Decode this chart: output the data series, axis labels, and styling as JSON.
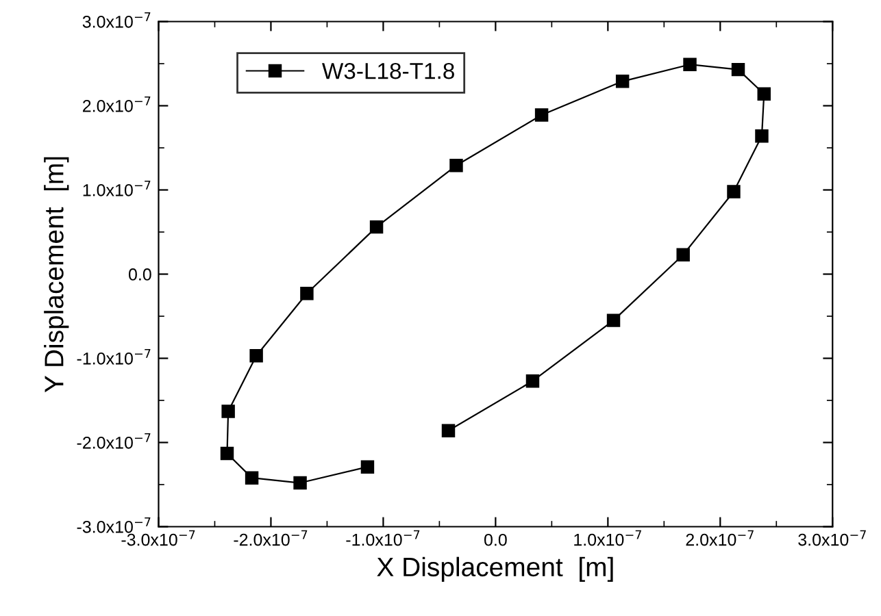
{
  "chart_data": {
    "type": "line",
    "xlabel": "X Displacement  [m]",
    "ylabel": "Y Displacement  [m]",
    "x": [
      -4.2e-08,
      3.3e-08,
      1.05e-07,
      1.67e-07,
      2.12e-07,
      2.37e-07,
      2.39e-07,
      2.16e-07,
      1.73e-07,
      1.13e-07,
      4.1e-08,
      -3.5e-08,
      -1.06e-07,
      -1.68e-07,
      -2.13e-07,
      -2.38e-07,
      -2.39e-07,
      -2.17e-07,
      -1.74e-07,
      -1.14e-07
    ],
    "series": [
      {
        "name": "W3-L18-T1.8",
        "color": "#000000",
        "values": [
          -1.86e-07,
          -1.27e-07,
          -5.5e-08,
          2.3e-08,
          9.8e-08,
          1.64e-07,
          2.14e-07,
          2.43e-07,
          2.49e-07,
          2.29e-07,
          1.89e-07,
          1.29e-07,
          5.6e-08,
          -2.3e-08,
          -9.7e-08,
          -1.63e-07,
          -2.13e-07,
          -2.42e-07,
          -2.48e-07,
          -2.29e-07
        ]
      }
    ],
    "xlim": [
      -3e-07,
      3e-07
    ],
    "ylim": [
      -3e-07,
      3e-07
    ],
    "xticks": [
      {
        "value": -3e-07,
        "label": "-3.0x10$^{−7}$"
      },
      {
        "value": -2e-07,
        "label": "-2.0x10$^{−7}$"
      },
      {
        "value": -1e-07,
        "label": "-1.0x10$^{−7}$"
      },
      {
        "value": 0,
        "label": "0.0"
      },
      {
        "value": 1e-07,
        "label": "1.0x10$^{−7}$"
      },
      {
        "value": 2e-07,
        "label": "2.0x10$^{−7}$"
      },
      {
        "value": 3e-07,
        "label": "3.0x10$^{−7}$"
      }
    ],
    "yticks": [
      {
        "value": -3e-07,
        "label": "-3.0x10$^{−7}$"
      },
      {
        "value": -2e-07,
        "label": "-2.0x10$^{−7}$"
      },
      {
        "value": -1e-07,
        "label": "-1.0x10$^{−7}$"
      },
      {
        "value": 0,
        "label": "0.0"
      },
      {
        "value": 1e-07,
        "label": "1.0x10$^{−7}$"
      },
      {
        "value": 2e-07,
        "label": "2.0x10$^{−7}$"
      },
      {
        "value": 3e-07,
        "label": "3.0x10$^{−7}$"
      }
    ],
    "marker": "square",
    "line_style": "solid",
    "legend": "top left",
    "grid": false
  }
}
